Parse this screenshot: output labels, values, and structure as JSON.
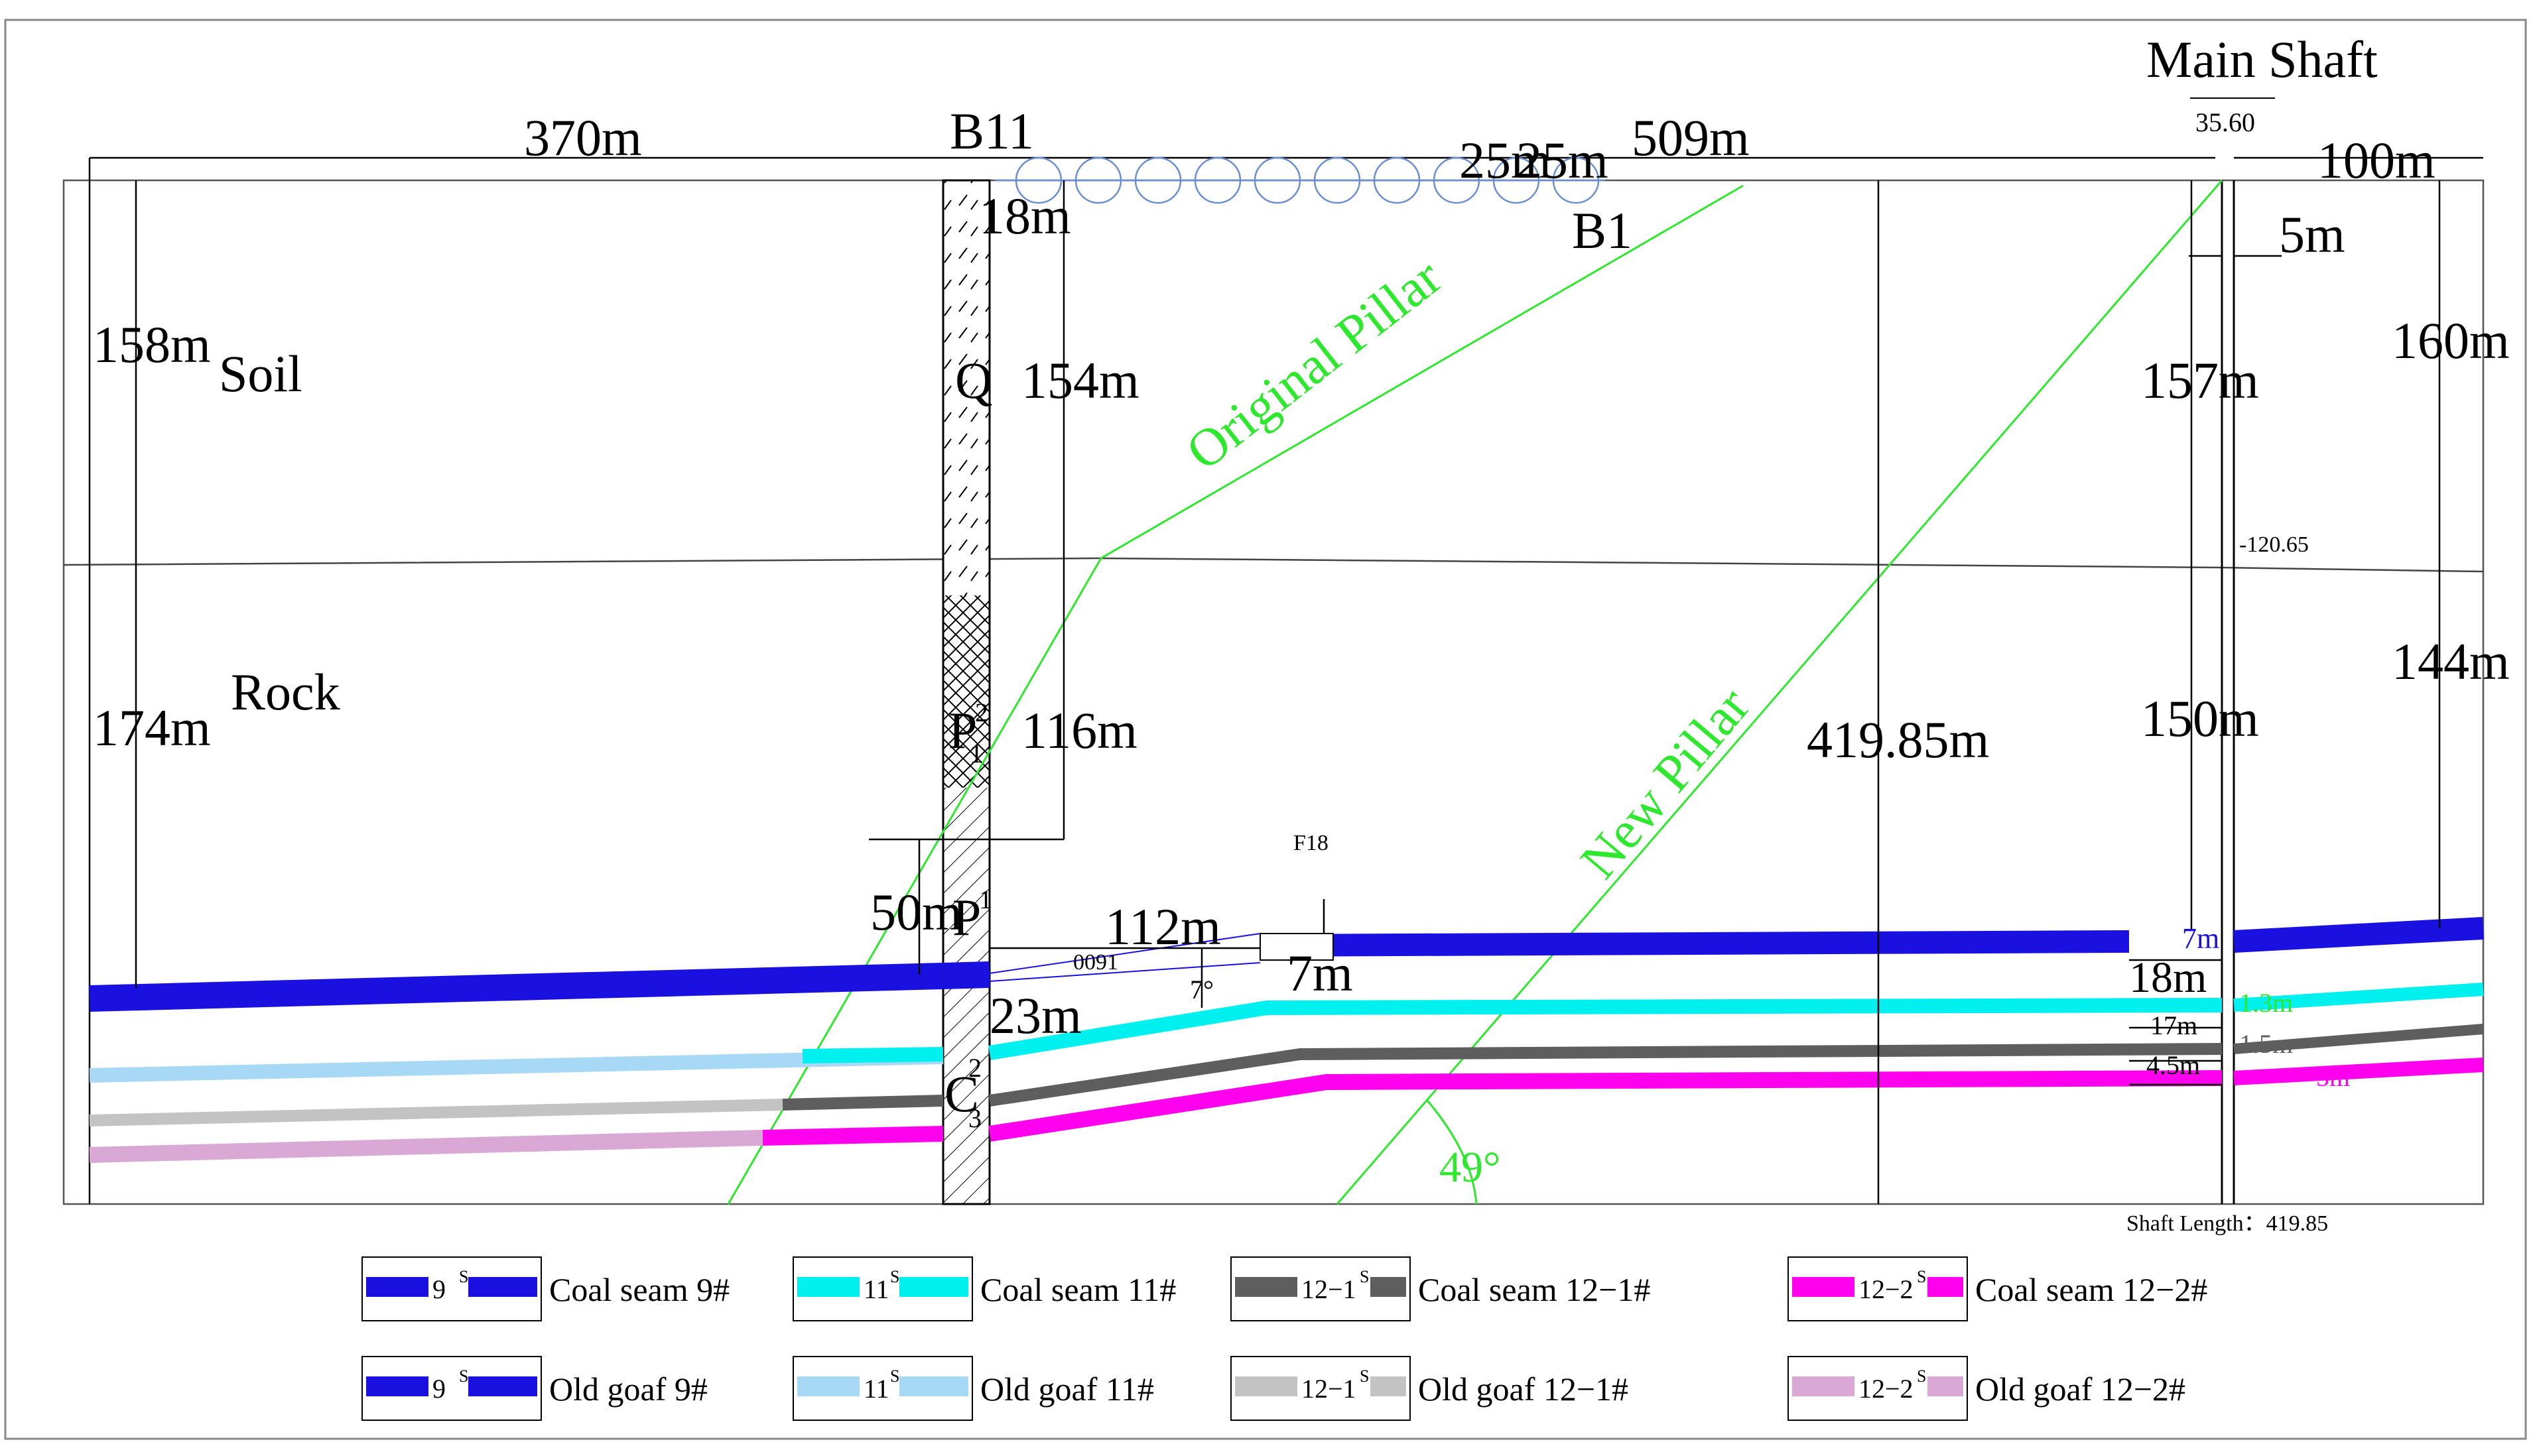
{
  "colors": {
    "seam9": "#1a10e0",
    "seam11": "#00f0f0",
    "seam12_1": "#5e5e5e",
    "seam12_2": "#ff00ee",
    "goaf9": "#1a10e0",
    "goaf11": "#a7d8f5",
    "goaf12_1": "#c3c3c3",
    "goaf12_2": "#d9a8d4",
    "pillar": "#2ee82e",
    "holes": "#6a8fd0"
  },
  "headings": {
    "main_shaft": "Main Shaft",
    "shaft_top_elev": "35.60",
    "soil": "Soil",
    "rock": "Rock",
    "borehole_b11": "B11",
    "borehole_b1": "B1",
    "strata_q": "Q",
    "strata_p12": "P",
    "strata_p12_sup": "2",
    "strata_p12_sub": "1",
    "strata_p1": "P",
    "strata_p1_sup": "1",
    "strata_c23": "C",
    "strata_c23_sup": "2",
    "strata_c23_sub": "3",
    "original_pillar": "Original Pillar",
    "new_pillar": "New Pillar",
    "fault": "F18",
    "angle_49": "49°",
    "angle_7": "7°",
    "code_0091": "0091",
    "shaft_elev": "-120.65",
    "shaft_length": "Shaft Length：419.85"
  },
  "dimensions": {
    "d370": "370m",
    "d509": "509m",
    "d25a": "25m",
    "d25b": "25m",
    "d100": "100m",
    "d158": "158m",
    "d174": "174m",
    "d18_top": "18m",
    "d154": "154m",
    "d116": "116m",
    "d50": "50m",
    "d112": "112m",
    "d23": "23m",
    "d7_mid": "7m",
    "d41985": "419.85m",
    "d157": "157m",
    "d150": "150m",
    "d5": "5m",
    "d160": "160m",
    "d144": "144m",
    "d7_right": "7m",
    "d18_right": "18m",
    "d17": "17m",
    "d45": "4.5m",
    "d13": "1.3m",
    "d15": "1.5m",
    "d5_pink": "5m"
  },
  "legend": [
    {
      "code": "9",
      "sup": "S",
      "label": "Coal seam 9#"
    },
    {
      "code": "11",
      "sup": "S",
      "label": "Coal seam 11#"
    },
    {
      "code": "12−1",
      "sup": "S",
      "label": "Coal seam 12−1#"
    },
    {
      "code": "12−2",
      "sup": "S",
      "label": "Coal seam 12−2#"
    },
    {
      "code": "9",
      "sup": "S",
      "label": "Old goaf 9#"
    },
    {
      "code": "11",
      "sup": "S",
      "label": "Old goaf 11#"
    },
    {
      "code": "12−1",
      "sup": "S",
      "label": "Old goaf 12−1#"
    },
    {
      "code": "12−2",
      "sup": "S",
      "label": "Old goaf 12−2#"
    }
  ]
}
